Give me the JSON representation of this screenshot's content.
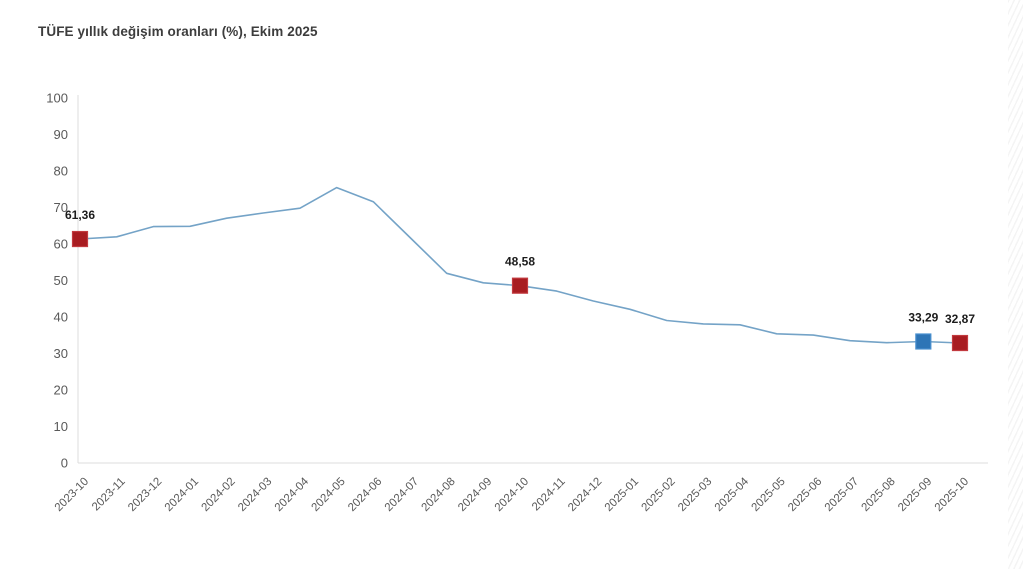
{
  "title": "TÜFE yıllık değişim oranları (%), Ekim 2025",
  "chart_data": {
    "type": "line",
    "title": "TÜFE yıllık değişim oranları (%), Ekim 2025",
    "categories": [
      "2023-10",
      "2023-11",
      "2023-12",
      "2024-01",
      "2024-02",
      "2024-03",
      "2024-04",
      "2024-05",
      "2024-06",
      "2024-07",
      "2024-08",
      "2024-09",
      "2024-10",
      "2024-11",
      "2024-12",
      "2025-01",
      "2025-02",
      "2025-03",
      "2025-04",
      "2025-05",
      "2025-06",
      "2025-07",
      "2025-08",
      "2025-09",
      "2025-10"
    ],
    "series": [
      {
        "values": [
          61.36,
          61.98,
          64.77,
          64.86,
          67.07,
          68.5,
          69.8,
          75.45,
          71.6,
          61.78,
          51.97,
          49.38,
          48.58,
          47.09,
          44.38,
          42.12,
          39.05,
          38.1,
          37.86,
          35.41,
          35.05,
          33.52,
          32.95,
          33.29,
          32.87
        ]
      }
    ],
    "ylim": [
      0,
      100
    ],
    "yticks": [
      0,
      10,
      20,
      30,
      40,
      50,
      60,
      70,
      80,
      90,
      100
    ],
    "grid": false,
    "legend": false,
    "xlabel": "",
    "ylabel": "",
    "highlighted_points": [
      {
        "category": "2023-10",
        "value": 61.36,
        "label": "61,36",
        "color_key": "marker_red"
      },
      {
        "category": "2024-10",
        "value": 48.58,
        "label": "48,58",
        "color_key": "marker_red"
      },
      {
        "category": "2025-09",
        "value": 33.29,
        "label": "33,29",
        "color_key": "marker_blue"
      },
      {
        "category": "2025-10",
        "value": 32.87,
        "label": "32,87",
        "color_key": "marker_red"
      }
    ],
    "colors": {
      "line": "#74a3c7",
      "marker_red": "#a81c21",
      "marker_red_border": "#c23a3f",
      "marker_blue": "#2e75b6",
      "marker_blue_border": "#4a90cf",
      "axis_line": "#dcdcdc",
      "tick_label": "#595959",
      "data_label": "#1c1c1c",
      "title": "#3d3d3d"
    }
  }
}
